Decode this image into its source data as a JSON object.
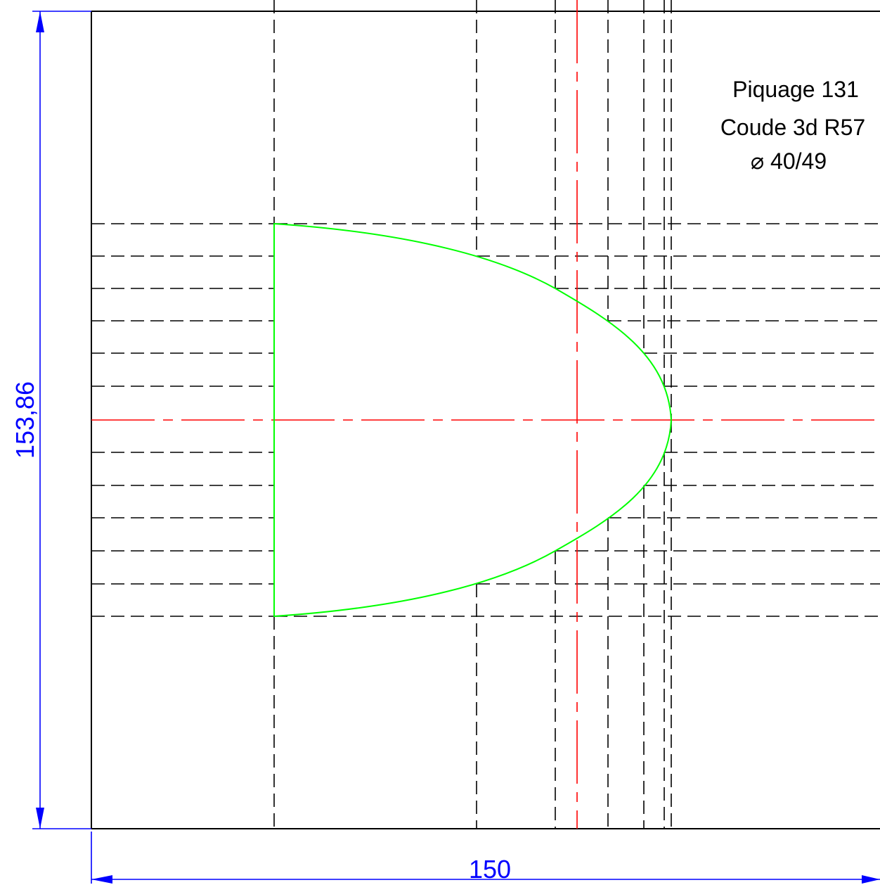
{
  "notes": {
    "line1": "Piquage 131",
    "line2": "Coude 3d R57",
    "line3": "⌀ 40/49"
  },
  "dimensions": {
    "height": "153,86",
    "width": "150"
  },
  "colors": {
    "outline": "#000000",
    "axis": "#ff0000",
    "dimension": "#0000ff",
    "profile": "#00ff00"
  }
}
